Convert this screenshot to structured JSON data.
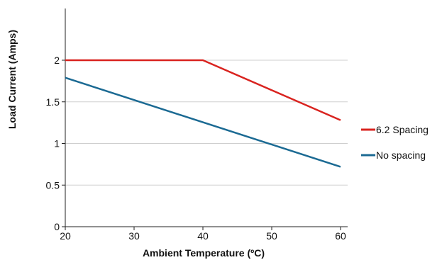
{
  "chart_data": {
    "type": "line",
    "title": "",
    "xlabel": "Ambient Temperature (ºC)",
    "ylabel": "Load Current (Amps)",
    "xlim": [
      20,
      62
    ],
    "ylim": [
      0,
      2.6
    ],
    "xticks": [
      20,
      30,
      40,
      50,
      60
    ],
    "xtick_labels": [
      "20",
      "30",
      "40",
      "50",
      "60"
    ],
    "yticks": [
      0,
      0.5,
      1,
      1.5,
      2
    ],
    "ytick_labels": [
      "0",
      "0.5",
      "1",
      "1.5",
      "2"
    ],
    "grid": "horizontal",
    "legend_position": "right",
    "series": [
      {
        "name": "6.2 Spacing",
        "color": "#d9231f",
        "x": [
          20,
          40,
          60
        ],
        "y": [
          2.0,
          2.0,
          1.28
        ]
      },
      {
        "name": "No spacing",
        "color": "#1b6a93",
        "x": [
          20,
          60
        ],
        "y": [
          1.79,
          0.72
        ]
      }
    ]
  }
}
